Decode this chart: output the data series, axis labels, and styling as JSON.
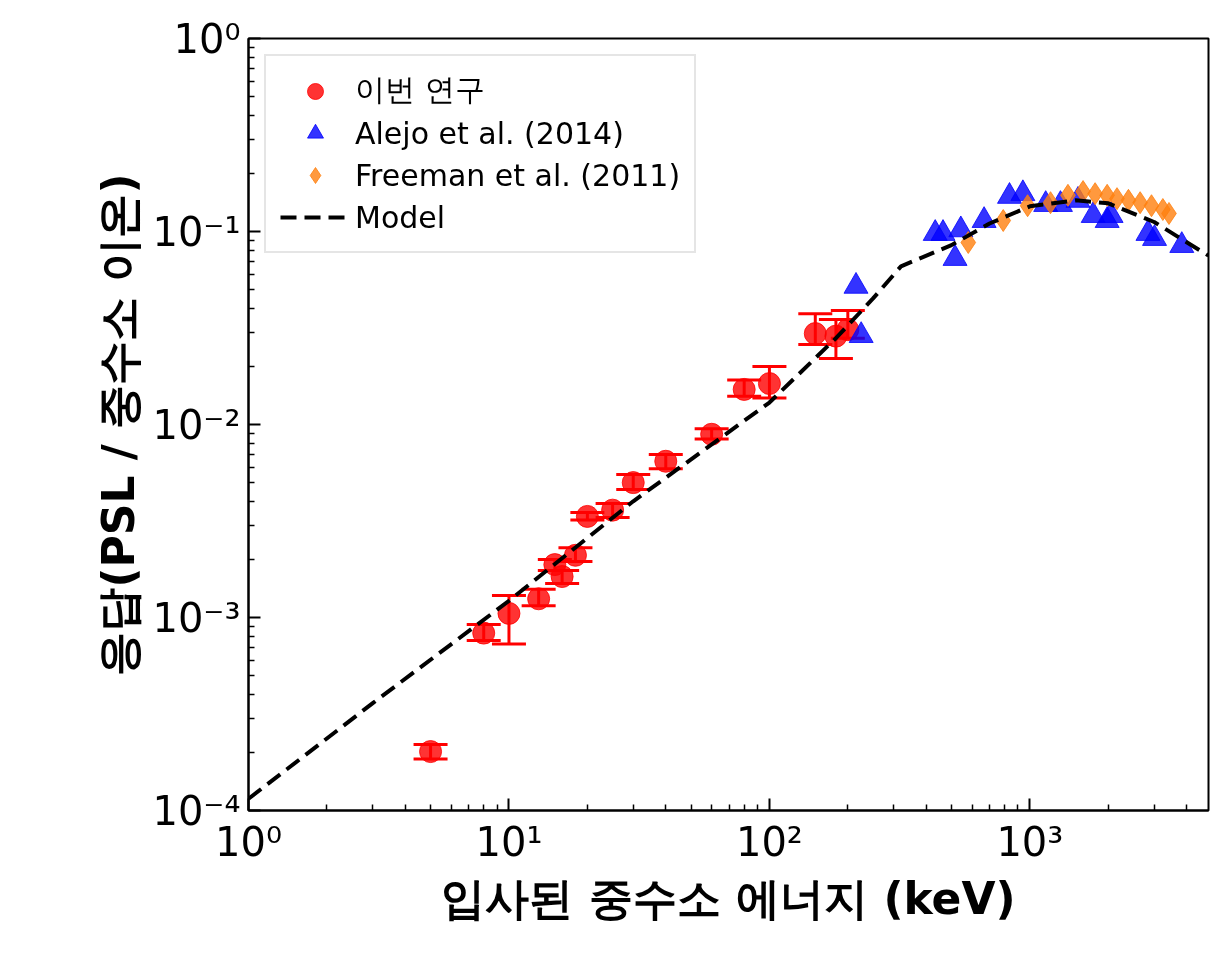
{
  "chart_data": {
    "type": "scatter",
    "xlabel": "입사된 중수소 에너지 (keV)",
    "ylabel": "응답(PSL / 중수소 이온)",
    "log": "xy",
    "grid": false,
    "legend": "top left",
    "xlim": [
      1,
      4850
    ],
    "ylim": [
      0.0001,
      1
    ],
    "xticks": [
      {
        "value": 1,
        "label": "10⁰"
      },
      {
        "value": 10,
        "label": "10¹"
      },
      {
        "value": 100,
        "label": "10²"
      },
      {
        "value": 1000,
        "label": "10³"
      }
    ],
    "yticks": [
      {
        "value": 0.0001,
        "label": "10⁻⁴"
      },
      {
        "value": 0.001,
        "label": "10⁻³"
      },
      {
        "value": 0.01,
        "label": "10⁻²"
      },
      {
        "value": 0.1,
        "label": "10⁻¹"
      },
      {
        "value": 1,
        "label": "10⁰"
      }
    ],
    "series": [
      {
        "name": "이번 연구",
        "marker": "circle",
        "color": "#ff0000",
        "x": [
          5,
          8,
          10,
          13,
          15,
          16,
          18,
          20,
          25,
          30,
          40,
          60,
          80,
          100,
          150,
          180,
          200
        ],
        "values": [
          0.000202,
          0.00083,
          0.00105,
          0.00125,
          0.00188,
          0.00163,
          0.0021,
          0.00334,
          0.0036,
          0.005,
          0.00645,
          0.0089,
          0.0152,
          0.0163,
          0.0296,
          0.0287,
          0.031
        ],
        "errors": [
          [
            0.000185,
            0.00022
          ],
          [
            0.00076,
            0.00092
          ],
          [
            0.00073,
            0.0013
          ],
          [
            0.00115,
            0.0014
          ],
          [
            0.00175,
            0.002
          ],
          [
            0.0015,
            0.00175
          ],
          [
            0.00195,
            0.0023
          ],
          [
            0.0032,
            0.0035
          ],
          [
            0.0033,
            0.0039
          ],
          [
            0.0046,
            0.0055
          ],
          [
            0.0059,
            0.007
          ],
          [
            0.0084,
            0.0095
          ],
          [
            0.014,
            0.017
          ],
          [
            0.0137,
            0.02
          ],
          [
            0.026,
            0.0375
          ],
          [
            0.022,
            0.035
          ],
          [
            0.028,
            0.039
          ]
        ]
      },
      {
        "name": "Alejo et al. (2014)",
        "marker": "triangle",
        "color": "#0000ff",
        "x": [
          215,
          225,
          433,
          464,
          516,
          543,
          667,
          835,
          940,
          1150,
          1310,
          1530,
          1750,
          1980,
          2050,
          2840,
          3010,
          3830
        ],
        "values": [
          0.052,
          0.0289,
          0.0977,
          0.0977,
          0.0725,
          0.102,
          0.114,
          0.152,
          0.157,
          0.138,
          0.138,
          0.145,
          0.121,
          0.114,
          0.121,
          0.0977,
          0.092,
          0.0846
        ]
      },
      {
        "name": "Freeman et al. (2011)",
        "marker": "diamond",
        "color": "#ff7f0e",
        "x": [
          580,
          790,
          980,
          1200,
          1400,
          1600,
          1780,
          1980,
          2160,
          2390,
          2650,
          2930,
          3240,
          3420
        ],
        "values": [
          0.0877,
          0.114,
          0.136,
          0.141,
          0.154,
          0.161,
          0.157,
          0.154,
          0.148,
          0.145,
          0.141,
          0.136,
          0.13,
          0.124
        ]
      },
      {
        "name": "Model",
        "type": "line",
        "line_style": "dashed",
        "color": "#000000",
        "x": [
          1,
          3,
          10,
          30,
          100,
          180,
          250,
          320,
          500,
          700,
          1000,
          1500,
          2000,
          3000,
          4000,
          4850
        ],
        "values": [
          0.000115,
          0.00036,
          0.00122,
          0.004,
          0.013,
          0.028,
          0.045,
          0.066,
          0.085,
          0.11,
          0.135,
          0.145,
          0.14,
          0.112,
          0.088,
          0.075
        ]
      }
    ]
  }
}
